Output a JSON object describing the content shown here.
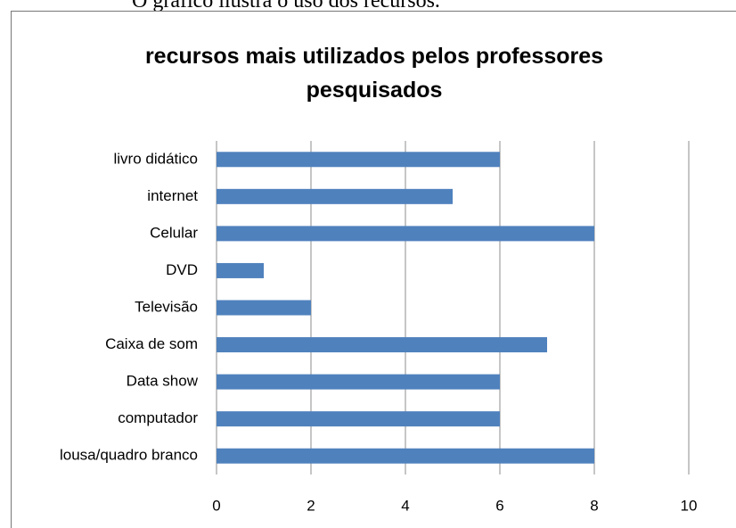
{
  "caption": "O gráfico ilustra o uso dos recursos.",
  "chart_data": {
    "type": "barh",
    "title": "recursos mais utilizados pelos professores pesquisados",
    "categories": [
      "livro didático",
      "internet",
      "Celular",
      "DVD",
      "Televisão",
      "Caixa de som",
      "Data show",
      "computador",
      "lousa/quadro branco"
    ],
    "values": [
      6,
      5,
      8,
      1,
      2,
      7,
      6,
      6,
      8
    ],
    "color": "#4f81bd",
    "xlim": [
      0,
      10
    ],
    "xticks": [
      0,
      2,
      4,
      6,
      8,
      10
    ],
    "grid": true
  }
}
